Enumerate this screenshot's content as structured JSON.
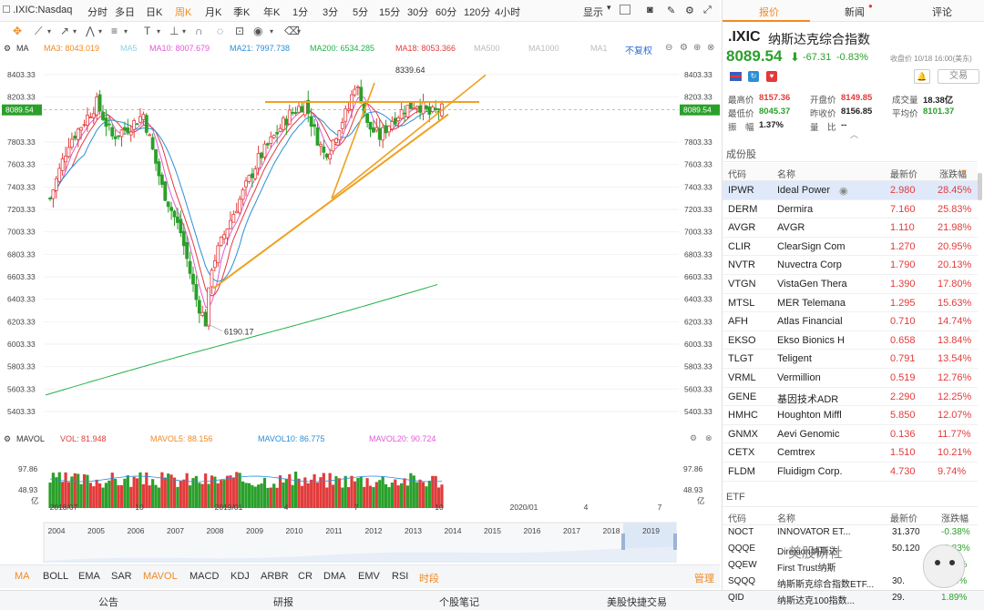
{
  "toolbar": {
    "symbol": ".IXIC:Nasdaq",
    "periods": [
      "分时",
      "多日",
      "日K",
      "周K",
      "月K",
      "季K",
      "年K",
      "1分",
      "3分",
      "5分",
      "15分",
      "30分",
      "60分",
      "120分",
      "4小时"
    ],
    "selected_period": "周K",
    "display_label": "显示"
  },
  "ma_legend": {
    "ma": "MA",
    "items": [
      {
        "label": "MA3: 8043.019",
        "color": "#f08a24"
      },
      {
        "label": "MA5",
        "color": "#8ecfe0"
      },
      {
        "label": "MA10: 8007.679",
        "color": "#e05ad5"
      },
      {
        "label": "MA21: 7997.738",
        "color": "#2a8fd6"
      },
      {
        "label": "MA200: 6534.285",
        "color": "#22b04a"
      },
      {
        "label": "MA18: 8053.366",
        "color": "#e23b3b"
      },
      {
        "label": "MA500",
        "color": "#bbbbbb"
      },
      {
        "label": "MA1000",
        "color": "#bbbbbb"
      },
      {
        "label": "MA1",
        "color": "#bbbbbb"
      }
    ],
    "no_adjust": "不复权"
  },
  "chart_data": {
    "type": "candlestick",
    "y_ticks": [
      "8403.33",
      "8203.33",
      "7803.33",
      "7603.33",
      "7403.33",
      "7203.33",
      "7003.33",
      "6803.33",
      "6603.33",
      "6403.33",
      "6203.33",
      "6003.33",
      "5803.33",
      "5603.33",
      "5403.33"
    ],
    "current_price_tag": "8089.54",
    "high_label": "8339.64",
    "low_label": "6190.17",
    "x_labels": [
      "2018/07",
      "10",
      "2019/01",
      "4",
      "7",
      "10",
      "2020/01",
      "4",
      "7"
    ],
    "ylim": [
      5403.33,
      8403.33
    ]
  },
  "volume": {
    "title": "MAVOL",
    "legend": [
      {
        "label": "VOL: 81.948",
        "color": "#e23b3b"
      },
      {
        "label": "MAVOL5: 88.156",
        "color": "#f08a24"
      },
      {
        "label": "MAVOL10: 86.775",
        "color": "#2a8fd6"
      },
      {
        "label": "MAVOL20: 90.724",
        "color": "#e05ad5"
      }
    ],
    "y_ticks": [
      "97.86",
      "48.93",
      "亿"
    ]
  },
  "navigator": {
    "years": [
      "2004",
      "2005",
      "2006",
      "2007",
      "2008",
      "2009",
      "2010",
      "2011",
      "2012",
      "2013",
      "2014",
      "2015",
      "2016",
      "2017",
      "2018",
      "2019"
    ]
  },
  "indicators": [
    "MA",
    "BOLL",
    "EMA",
    "SAR",
    "MAVOL",
    "MACD",
    "KDJ",
    "ARBR",
    "CR",
    "DMA",
    "EMV",
    "RSI",
    "时段"
  ],
  "selected_indicators": [
    "MA",
    "MAVOL",
    "时段"
  ],
  "manage_label": "管理",
  "bottom_tabs": [
    "公告",
    "研报",
    "个股笔记",
    "美股快捷交易"
  ],
  "right": {
    "tabs": [
      "报价",
      "新闻",
      "评论"
    ],
    "selected_tab": "报价",
    "ticker": ".IXIC",
    "name": "纳斯达克综合指数",
    "price": "8089.54",
    "change": "-67.31",
    "change_pct": "-0.83%",
    "close_time": "收盘价 10/18 16:00(美东)",
    "trade_button": "交易",
    "stats": [
      {
        "label": "最高价",
        "value": "8157.36",
        "color": "red"
      },
      {
        "label": "开盘价",
        "value": "8149.85",
        "color": "red"
      },
      {
        "label": "成交量",
        "value": "18.38亿",
        "color": "dark"
      },
      {
        "label": "最低价",
        "value": "8045.37",
        "color": "green"
      },
      {
        "label": "昨收价",
        "value": "8156.85",
        "color": "dark"
      },
      {
        "label": "平均价",
        "value": "8101.37",
        "color": "green"
      },
      {
        "label": "振　幅",
        "value": "1.37%",
        "color": "dark"
      },
      {
        "label": "量　比",
        "value": "--",
        "color": "dark"
      }
    ],
    "components_title": "成份股",
    "table_headers": [
      "代码",
      "名称",
      "最新价",
      "涨跌幅"
    ],
    "rows": [
      {
        "code": "IPWR",
        "name": "Ideal Power",
        "price": "2.980",
        "pct": "28.45%"
      },
      {
        "code": "DERM",
        "name": "Dermira",
        "price": "7.160",
        "pct": "25.83%"
      },
      {
        "code": "AVGR",
        "name": "AVGR",
        "price": "1.110",
        "pct": "21.98%"
      },
      {
        "code": "CLIR",
        "name": "ClearSign Com",
        "price": "1.270",
        "pct": "20.95%"
      },
      {
        "code": "NVTR",
        "name": "Nuvectra Corp",
        "price": "1.790",
        "pct": "20.13%"
      },
      {
        "code": "VTGN",
        "name": "VistaGen Thera",
        "price": "1.390",
        "pct": "17.80%"
      },
      {
        "code": "MTSL",
        "name": "MER Telemana",
        "price": "1.295",
        "pct": "15.63%"
      },
      {
        "code": "AFH",
        "name": "Atlas Financial",
        "price": "0.710",
        "pct": "14.74%"
      },
      {
        "code": "EKSO",
        "name": "Ekso Bionics H",
        "price": "0.658",
        "pct": "13.84%"
      },
      {
        "code": "TLGT",
        "name": "Teligent",
        "price": "0.791",
        "pct": "13.54%"
      },
      {
        "code": "VRML",
        "name": "Vermillion",
        "price": "0.519",
        "pct": "12.76%"
      },
      {
        "code": "GENE",
        "name": "基因技术ADR",
        "price": "2.290",
        "pct": "12.25%"
      },
      {
        "code": "HMHC",
        "name": "Houghton Miffl",
        "price": "5.850",
        "pct": "12.07%"
      },
      {
        "code": "GNMX",
        "name": "Aevi Genomic",
        "price": "0.136",
        "pct": "11.77%"
      },
      {
        "code": "CETX",
        "name": "Cemtrex",
        "price": "1.510",
        "pct": "10.21%"
      },
      {
        "code": "FLDM",
        "name": "Fluidigm Corp.",
        "price": "4.730",
        "pct": "9.74%"
      }
    ],
    "etf_title": "ETF",
    "etf_headers": [
      "代码",
      "名称",
      "最新价",
      "涨跌幅"
    ],
    "etf_rows": [
      {
        "code": "NOCT",
        "name": "INNOVATOR ET...",
        "price": "31.370",
        "pct": "-0.38%"
      },
      {
        "code": "QQQE",
        "name": "Direxion纳斯达",
        "price": "50.120",
        "pct": "-0.83%"
      },
      {
        "code": "QQEW",
        "name": "First Trust纳斯",
        "price": "",
        "pct": "0.80%"
      },
      {
        "code": "SQQQ",
        "name": "纳斯斯克综合指数ETF...",
        "price": "30.",
        "pct": "2.83%"
      },
      {
        "code": "QID",
        "name": "纳斯达克100指数...",
        "price": "29.",
        "pct": "1.89%"
      }
    ],
    "watermark": "美股研社"
  }
}
